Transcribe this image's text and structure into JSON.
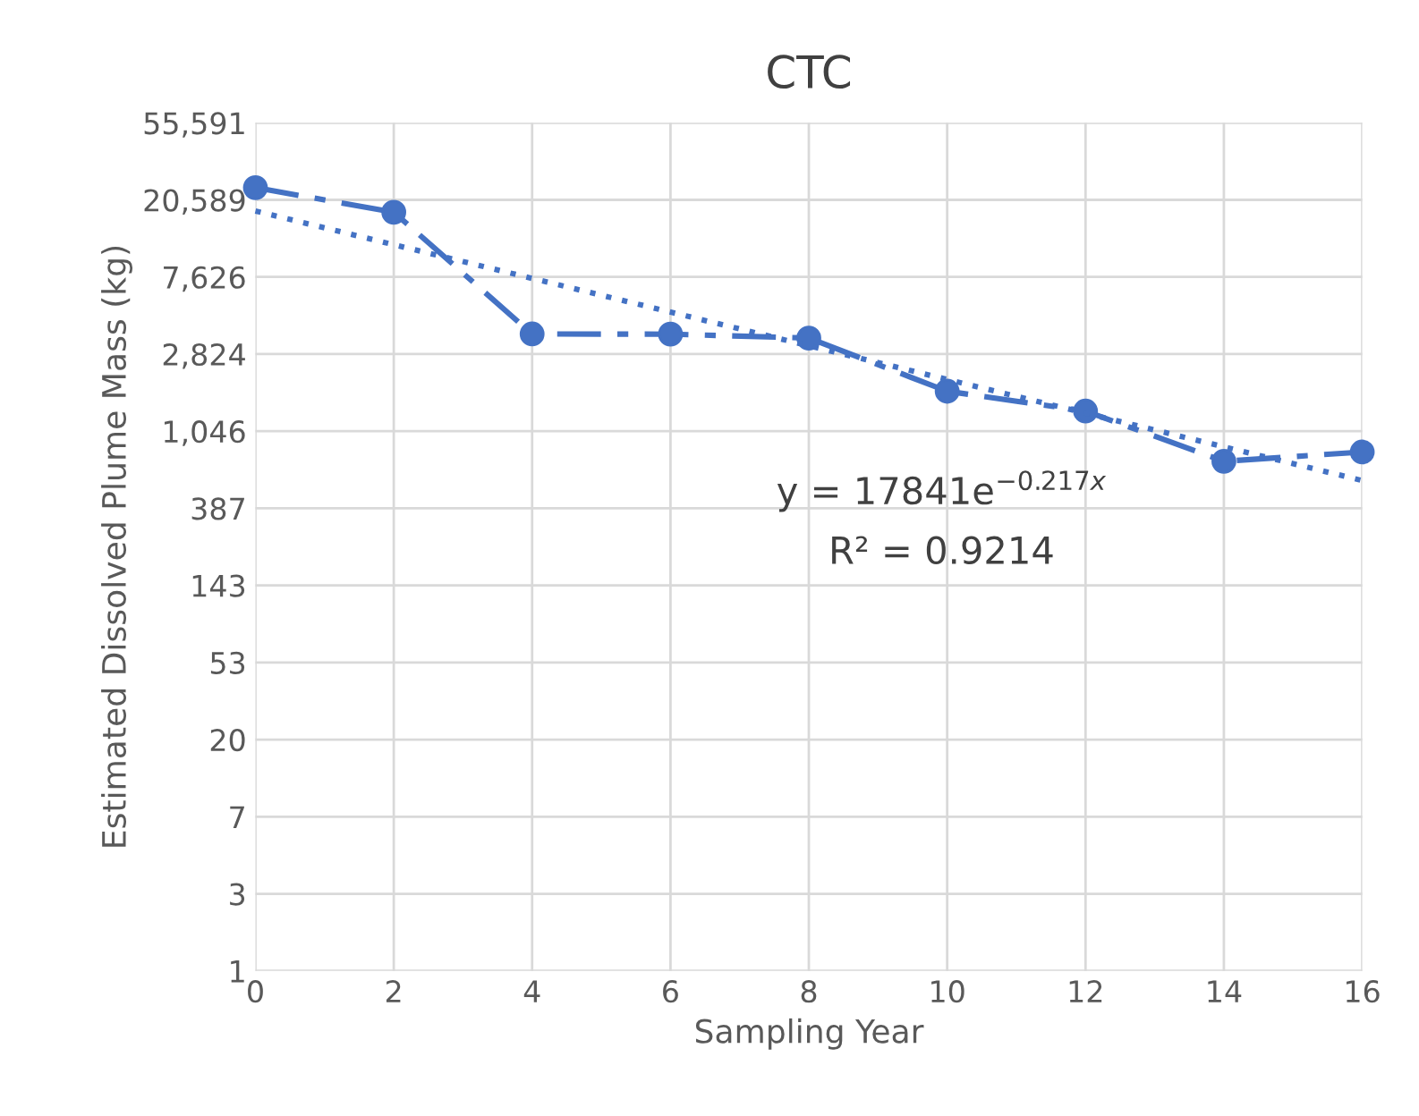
{
  "chart_data": {
    "type": "line",
    "title": "CTC",
    "xlabel": "Sampling Year",
    "ylabel": "Estimated Dissolved Plume Mass (kg)",
    "x": [
      0,
      2,
      4,
      6,
      8,
      10,
      12,
      14,
      16
    ],
    "series": [
      {
        "color": "#4472c4",
        "values": [
          24100,
          17560,
          3660,
          3650,
          3470,
          1750,
          1355,
          710,
          800
        ],
        "marker": "circle",
        "line_style": "dashed"
      },
      {
        "type": "line",
        "color": "#4472c4",
        "x": [
          0,
          16
        ],
        "values": [
          17841,
          554
        ],
        "marker": "none",
        "line_style": "dotted"
      }
    ],
    "log": "y",
    "grid": true,
    "legend": false,
    "xlim": [
      0,
      16
    ],
    "xticks": [
      0,
      2,
      4,
      6,
      8,
      10,
      12,
      14,
      16
    ],
    "ylim": [
      1,
      55590.6
    ],
    "yticks": [
      {
        "value": 1,
        "label": "1"
      },
      {
        "value": 2.7,
        "label": "3"
      },
      {
        "value": 7.29,
        "label": "7"
      },
      {
        "value": 19.683,
        "label": "20"
      },
      {
        "value": 53.1441,
        "label": "53"
      },
      {
        "value": 143.489,
        "label": "143"
      },
      {
        "value": 387.42,
        "label": "387"
      },
      {
        "value": 1046.04,
        "label": "1,046"
      },
      {
        "value": 2824.3,
        "label": "2,824"
      },
      {
        "value": 7625.6,
        "label": "7,626"
      },
      {
        "value": 20589.1,
        "label": "20,589"
      },
      {
        "value": 55590.6,
        "label": "55,591"
      }
    ],
    "annotations": [
      "y = 17841e$^{−0.217x}$",
      "R² = 0.9214"
    ]
  }
}
